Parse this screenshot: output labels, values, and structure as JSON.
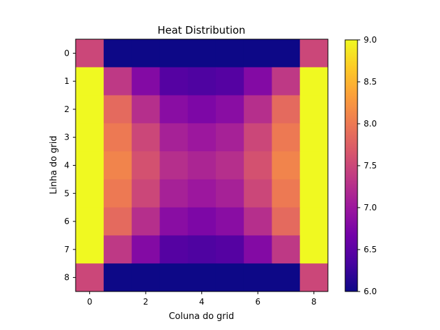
{
  "chart_data": {
    "type": "heatmap",
    "title": "Heat Distribution",
    "xlabel": "Coluna do grid",
    "ylabel": "Linha do grid",
    "colormap": "plasma",
    "vmin": 6.0,
    "vmax": 9.0,
    "x_ticks": [
      0,
      2,
      4,
      6,
      8
    ],
    "y_ticks": [
      0,
      1,
      2,
      3,
      4,
      5,
      6,
      7,
      8
    ],
    "colorbar_ticks": [
      "6.0",
      "6.5",
      "7.0",
      "7.5",
      "8.0",
      "8.5",
      "9.0"
    ],
    "grid": false,
    "values": [
      [
        7.5,
        6.0,
        6.0,
        6.0,
        6.0,
        6.0,
        6.0,
        6.0,
        7.5
      ],
      [
        9.0,
        7.35,
        6.8,
        6.45,
        6.4,
        6.45,
        6.8,
        7.35,
        9.0
      ],
      [
        9.0,
        7.85,
        7.25,
        6.85,
        6.75,
        6.85,
        7.25,
        7.85,
        9.0
      ],
      [
        9.0,
        8.0,
        7.5,
        7.1,
        7.0,
        7.1,
        7.5,
        8.0,
        9.0
      ],
      [
        9.0,
        8.1,
        7.6,
        7.25,
        7.15,
        7.25,
        7.6,
        8.1,
        9.0
      ],
      [
        9.0,
        8.0,
        7.5,
        7.1,
        7.0,
        7.1,
        7.5,
        8.0,
        9.0
      ],
      [
        9.0,
        7.85,
        7.25,
        6.85,
        6.75,
        6.85,
        7.25,
        7.85,
        9.0
      ],
      [
        9.0,
        7.35,
        6.8,
        6.45,
        6.4,
        6.45,
        6.8,
        7.35,
        9.0
      ],
      [
        7.5,
        6.0,
        6.0,
        6.0,
        6.0,
        6.0,
        6.0,
        6.0,
        7.5
      ]
    ]
  }
}
